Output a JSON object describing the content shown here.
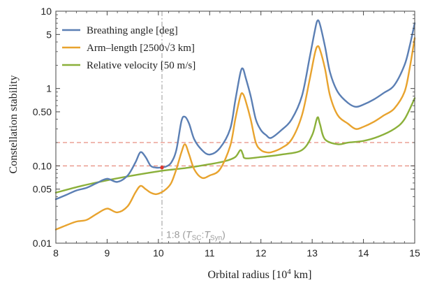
{
  "chart_data": {
    "type": "line",
    "xlabel": "Orbital radius [10",
    "xlabel_sup": "4",
    "xlabel_end": " km]",
    "ylabel": "Constellation stability",
    "xlim": [
      8,
      15
    ],
    "ylim": [
      0.01,
      10
    ],
    "y_scale": "log",
    "x_ticks": [
      "8",
      "9",
      "10",
      "11",
      "12",
      "13",
      "14",
      "15"
    ],
    "y_ticks": [
      {
        "value": 0.01,
        "label": "0.01"
      },
      {
        "value": 0.05,
        "label": "0.05"
      },
      {
        "value": 0.1,
        "label": "0.10"
      },
      {
        "value": 0.5,
        "label": "0.50"
      },
      {
        "value": 1,
        "label": "1"
      },
      {
        "value": 5,
        "label": "5"
      },
      {
        "value": 10,
        "label": "10"
      }
    ],
    "legend_position": "top-left",
    "series": [
      {
        "name": "Breathing angle [deg]",
        "color": "#5b7fb4",
        "x": [
          8.0,
          8.2,
          8.4,
          8.6,
          8.8,
          9.0,
          9.2,
          9.4,
          9.55,
          9.65,
          9.75,
          9.85,
          9.95,
          10.05,
          10.15,
          10.25,
          10.35,
          10.45,
          10.52,
          10.6,
          10.7,
          10.85,
          11.0,
          11.2,
          11.4,
          11.5,
          11.6,
          11.65,
          11.7,
          11.8,
          11.9,
          12.0,
          12.1,
          12.2,
          12.4,
          12.6,
          12.8,
          12.95,
          13.05,
          13.1,
          13.15,
          13.25,
          13.35,
          13.5,
          13.7,
          13.85,
          14.0,
          14.2,
          14.4,
          14.6,
          14.8,
          14.9,
          15.0
        ],
        "y": [
          0.037,
          0.042,
          0.048,
          0.052,
          0.06,
          0.068,
          0.062,
          0.075,
          0.11,
          0.15,
          0.13,
          0.1,
          0.095,
          0.095,
          0.098,
          0.11,
          0.16,
          0.38,
          0.43,
          0.35,
          0.22,
          0.16,
          0.14,
          0.17,
          0.3,
          0.7,
          1.6,
          1.8,
          1.4,
          0.8,
          0.4,
          0.29,
          0.25,
          0.23,
          0.29,
          0.4,
          0.8,
          2.5,
          5.5,
          7.5,
          6.8,
          3.5,
          1.6,
          0.9,
          0.65,
          0.58,
          0.62,
          0.72,
          0.88,
          1.1,
          2.0,
          3.5,
          7.0
        ]
      },
      {
        "name": "Arm–length [2500√3 km]",
        "color": "#e8a32e",
        "x": [
          8.0,
          8.2,
          8.4,
          8.6,
          8.8,
          9.0,
          9.2,
          9.4,
          9.55,
          9.65,
          9.75,
          9.85,
          9.95,
          10.05,
          10.15,
          10.25,
          10.35,
          10.45,
          10.52,
          10.6,
          10.7,
          10.85,
          11.0,
          11.2,
          11.4,
          11.5,
          11.6,
          11.65,
          11.7,
          11.8,
          11.9,
          12.0,
          12.1,
          12.2,
          12.4,
          12.6,
          12.8,
          12.95,
          13.05,
          13.1,
          13.15,
          13.25,
          13.35,
          13.5,
          13.7,
          13.85,
          14.0,
          14.2,
          14.4,
          14.6,
          14.8,
          14.9,
          15.0
        ],
        "y": [
          0.015,
          0.017,
          0.019,
          0.02,
          0.024,
          0.028,
          0.025,
          0.03,
          0.045,
          0.055,
          0.05,
          0.045,
          0.043,
          0.045,
          0.05,
          0.06,
          0.09,
          0.15,
          0.19,
          0.14,
          0.09,
          0.07,
          0.075,
          0.09,
          0.18,
          0.4,
          0.8,
          0.85,
          0.7,
          0.4,
          0.2,
          0.16,
          0.15,
          0.15,
          0.17,
          0.22,
          0.45,
          1.3,
          2.8,
          3.5,
          3.2,
          1.8,
          0.8,
          0.45,
          0.35,
          0.3,
          0.32,
          0.37,
          0.45,
          0.55,
          0.9,
          1.8,
          4.5
        ]
      },
      {
        "name": "Relative velocity [50 m/s]",
        "color": "#8bb03a",
        "x": [
          8.0,
          8.5,
          9.0,
          9.5,
          10.0,
          10.3,
          10.6,
          11.0,
          11.3,
          11.5,
          11.6,
          11.65,
          11.7,
          12.0,
          12.4,
          12.8,
          13.0,
          13.1,
          13.15,
          13.25,
          13.5,
          13.7,
          14.0,
          14.3,
          14.6,
          14.8,
          15.0
        ],
        "y": [
          0.045,
          0.055,
          0.065,
          0.075,
          0.085,
          0.09,
          0.095,
          0.105,
          0.115,
          0.13,
          0.16,
          0.14,
          0.125,
          0.13,
          0.14,
          0.16,
          0.25,
          0.42,
          0.35,
          0.22,
          0.19,
          0.2,
          0.21,
          0.24,
          0.3,
          0.4,
          0.75
        ]
      }
    ],
    "reference_lines": [
      {
        "type": "horizontal",
        "value": 0.1,
        "color": "#e07060",
        "style": "dashed"
      },
      {
        "type": "horizontal",
        "value": 0.2,
        "color": "#e07060",
        "style": "dashed"
      },
      {
        "type": "vertical",
        "value": 10.07,
        "color": "#999999",
        "style": "dashdot"
      }
    ],
    "marker": {
      "x": 10.07,
      "y": 0.095,
      "color": "#e0332a"
    },
    "annotation": {
      "text_prefix": "1:8 (",
      "t1": "T",
      "t1_sub": "SC",
      "colon": ":",
      "t2": "T",
      "t2_sub": "Syn",
      "text_suffix": ")",
      "x": 10.07,
      "y": 0.013
    }
  }
}
